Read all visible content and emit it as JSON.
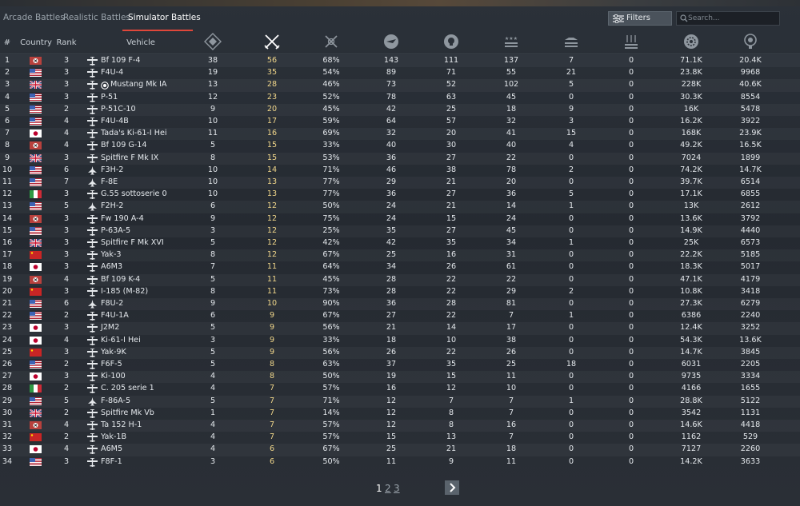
{
  "tabs": [
    "Arcade Battles",
    "Realistic Battles",
    "Simulator Battles"
  ],
  "filters_label": "Filters",
  "search_placeholder": "Search...",
  "columns": {
    "num": "#",
    "country": "Country",
    "rank": "Rank",
    "vehicle": "Vehicle"
  },
  "stat_icons": [
    "battles-icon",
    "respawns-icon",
    "win-rate-icon",
    "deaths-icon",
    "kills-icon",
    "air-kills-icon",
    "ground-kills-icon",
    "naval-kills-icon",
    "research-points-icon",
    "silver-lions-icon"
  ],
  "flag_colors": {
    "de": "#b8413d",
    "us": "#3f62b3",
    "uk": "#33467a",
    "jp": "#ffffff",
    "cn": "#c92525",
    "it": "#2f9a44"
  },
  "rows": [
    [
      "1",
      "de",
      "3",
      "Bf 109 F-4",
      "38",
      "56",
      "68%",
      "143",
      "111",
      "137",
      "7",
      "0",
      "71.1K",
      "20.4K"
    ],
    [
      "2",
      "us",
      "3",
      "F4U-4",
      "19",
      "35",
      "54%",
      "89",
      "71",
      "55",
      "21",
      "0",
      "23.8K",
      "9968"
    ],
    [
      "3",
      "uk",
      "3",
      "Mustang Mk IA",
      "13",
      "28",
      "46%",
      "73",
      "52",
      "102",
      "5",
      "0",
      "228K",
      "40.6K"
    ],
    [
      "4",
      "us",
      "3",
      "P-51",
      "12",
      "23",
      "52%",
      "78",
      "63",
      "45",
      "0",
      "0",
      "30.3K",
      "8554"
    ],
    [
      "5",
      "us",
      "2",
      "P-51C-10",
      "9",
      "20",
      "45%",
      "42",
      "25",
      "18",
      "9",
      "0",
      "16K",
      "5478"
    ],
    [
      "6",
      "us",
      "4",
      "F4U-4B",
      "10",
      "17",
      "59%",
      "64",
      "57",
      "32",
      "3",
      "0",
      "16.2K",
      "3922"
    ],
    [
      "7",
      "jp",
      "4",
      "Tada's Ki-61-I Hei",
      "11",
      "16",
      "69%",
      "32",
      "20",
      "41",
      "15",
      "0",
      "168K",
      "23.9K"
    ],
    [
      "8",
      "de",
      "4",
      "Bf 109 G-14",
      "5",
      "15",
      "33%",
      "40",
      "30",
      "40",
      "4",
      "0",
      "49.2K",
      "16.5K"
    ],
    [
      "9",
      "uk",
      "3",
      "Spitfire F Mk IX",
      "8",
      "15",
      "53%",
      "36",
      "27",
      "22",
      "0",
      "0",
      "7024",
      "1899"
    ],
    [
      "10",
      "us",
      "6",
      "F3H-2",
      "10",
      "14",
      "71%",
      "46",
      "38",
      "78",
      "2",
      "0",
      "74.2K",
      "14.7K"
    ],
    [
      "11",
      "us",
      "7",
      "F-8E",
      "10",
      "13",
      "77%",
      "29",
      "21",
      "20",
      "0",
      "0",
      "39.7K",
      "6514"
    ],
    [
      "12",
      "it",
      "3",
      "G.55 sottoserie 0",
      "10",
      "13",
      "77%",
      "36",
      "27",
      "36",
      "5",
      "0",
      "17.1K",
      "6855"
    ],
    [
      "13",
      "us",
      "5",
      "F2H-2",
      "6",
      "12",
      "50%",
      "24",
      "21",
      "14",
      "1",
      "0",
      "13K",
      "2612"
    ],
    [
      "14",
      "de",
      "3",
      "Fw 190 A-4",
      "9",
      "12",
      "75%",
      "24",
      "15",
      "24",
      "0",
      "0",
      "13.6K",
      "3792"
    ],
    [
      "15",
      "us",
      "3",
      "P-63A-5",
      "3",
      "12",
      "25%",
      "35",
      "27",
      "45",
      "0",
      "0",
      "14.9K",
      "4440"
    ],
    [
      "16",
      "uk",
      "3",
      "Spitfire F Mk XVI",
      "5",
      "12",
      "42%",
      "42",
      "35",
      "34",
      "1",
      "0",
      "25K",
      "6573"
    ],
    [
      "17",
      "cn",
      "3",
      "Yak-3",
      "8",
      "12",
      "67%",
      "25",
      "16",
      "31",
      "0",
      "0",
      "22.2K",
      "5185"
    ],
    [
      "18",
      "jp",
      "3",
      "A6M3",
      "7",
      "11",
      "64%",
      "34",
      "26",
      "61",
      "0",
      "0",
      "18.3K",
      "5017"
    ],
    [
      "19",
      "de",
      "4",
      "Bf 109 K-4",
      "5",
      "11",
      "45%",
      "28",
      "22",
      "22",
      "0",
      "0",
      "47.1K",
      "4179"
    ],
    [
      "20",
      "cn",
      "3",
      "I-185 (M-82)",
      "8",
      "11",
      "73%",
      "28",
      "22",
      "29",
      "2",
      "0",
      "10.8K",
      "3418"
    ],
    [
      "21",
      "us",
      "6",
      "F8U-2",
      "9",
      "10",
      "90%",
      "36",
      "28",
      "81",
      "0",
      "0",
      "27.3K",
      "6279"
    ],
    [
      "22",
      "us",
      "2",
      "F4U-1A",
      "6",
      "9",
      "67%",
      "27",
      "22",
      "7",
      "1",
      "0",
      "6386",
      "2240"
    ],
    [
      "23",
      "jp",
      "3",
      "J2M2",
      "5",
      "9",
      "56%",
      "21",
      "14",
      "17",
      "0",
      "0",
      "12.4K",
      "3252"
    ],
    [
      "24",
      "jp",
      "4",
      "Ki-61-I Hei",
      "3",
      "9",
      "33%",
      "18",
      "10",
      "38",
      "0",
      "0",
      "54.3K",
      "13.6K"
    ],
    [
      "25",
      "cn",
      "3",
      "Yak-9K",
      "5",
      "9",
      "56%",
      "26",
      "22",
      "26",
      "0",
      "0",
      "14.7K",
      "3845"
    ],
    [
      "26",
      "us",
      "2",
      "F6F-5",
      "5",
      "8",
      "63%",
      "37",
      "35",
      "25",
      "18",
      "0",
      "6031",
      "2205"
    ],
    [
      "27",
      "jp",
      "3",
      "Ki-100",
      "4",
      "8",
      "50%",
      "19",
      "15",
      "11",
      "0",
      "0",
      "9735",
      "3334"
    ],
    [
      "28",
      "it",
      "2",
      "C. 205 serie 1",
      "4",
      "7",
      "57%",
      "16",
      "12",
      "10",
      "0",
      "0",
      "4166",
      "1655"
    ],
    [
      "29",
      "us",
      "5",
      "F-86A-5",
      "5",
      "7",
      "71%",
      "12",
      "7",
      "7",
      "1",
      "0",
      "28.8K",
      "5122"
    ],
    [
      "30",
      "uk",
      "2",
      "Spitfire Mk Vb",
      "1",
      "7",
      "14%",
      "12",
      "8",
      "7",
      "0",
      "0",
      "3542",
      "1131"
    ],
    [
      "31",
      "de",
      "4",
      "Ta 152 H-1",
      "4",
      "7",
      "57%",
      "12",
      "8",
      "16",
      "0",
      "0",
      "14.6K",
      "4418"
    ],
    [
      "32",
      "cn",
      "2",
      "Yak-1B",
      "4",
      "7",
      "57%",
      "15",
      "13",
      "7",
      "0",
      "0",
      "1162",
      "529"
    ],
    [
      "33",
      "jp",
      "4",
      "A6M5",
      "4",
      "6",
      "67%",
      "25",
      "21",
      "18",
      "0",
      "0",
      "7127",
      "2260"
    ],
    [
      "34",
      "us",
      "3",
      "F8F-1",
      "3",
      "6",
      "50%",
      "11",
      "9",
      "11",
      "0",
      "0",
      "14.2K",
      "3633"
    ]
  ],
  "pagination": {
    "pages": [
      "1",
      "2",
      "3"
    ],
    "current": "1"
  }
}
